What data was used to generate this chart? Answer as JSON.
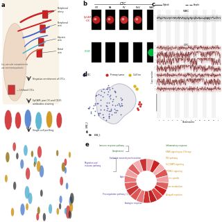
{
  "bg_color": "#ffffff",
  "panel_b": {
    "columns": [
      "HV",
      "PA",
      "PV",
      "PoV",
      "WBC"
    ],
    "row1_label": "EpCAM\n+CK",
    "row2_label": "CD45",
    "row1_has_dot": [
      true,
      true,
      true,
      true,
      false
    ],
    "row1_dot_color": [
      "#cc2222",
      "#cc2222",
      "#dd3333",
      "#dd3333",
      "#000000"
    ],
    "row2_has_dot": [
      false,
      false,
      false,
      false,
      true
    ],
    "row2_dot_color": [
      "#000000",
      "#000000",
      "#000000",
      "#000000",
      "#00cc44"
    ]
  },
  "panel_c": {
    "legend_diploid": "Diploid",
    "legend_amplic": "Amplic",
    "wbc_label": "WBC",
    "ctc_label": "CTC",
    "ylabel": "Copy number",
    "xlabel": "Chromosome",
    "chroms": [
      "1",
      "2",
      "3",
      "4",
      "5",
      "6",
      "7",
      "8",
      "9",
      "10",
      "11",
      "12",
      "13",
      "1-"
    ]
  },
  "panel_d": {
    "legend_labels": [
      "CTC",
      "Primary tumor",
      "Cell line"
    ],
    "legend_colors": [
      "#223388",
      "#cc2222",
      "#ddaa00"
    ],
    "tsne_xlabel": "tSNE_1",
    "tsne_ylabel": "tSNE_2"
  },
  "panel_e": {
    "left_group1_label": "Immune response pathway",
    "left_group1_items": [
      "Inflammatory response",
      "Complement"
    ],
    "left_group2_label": "Migration and\ninvasion pathway",
    "left_group2_items": [
      "Epithelial mesenchymal transition",
      "Hypoxia",
      "Apical junction"
    ],
    "left_bottom_items": [
      "Myogenesis",
      "Procoagulation pathway | Coagulation",
      "Andogen response"
    ],
    "right_group1_label": "Oncoge",
    "right_group1_items": [
      "KRAS signaling up",
      "P53 pathway"
    ],
    "right_bottom_items": [
      "IL2_STAT5 signaling",
      "MTORC1 signaling",
      "Mitotic spindle",
      "Heme metabolism",
      "Allograft rejection"
    ],
    "wedge_colors": [
      "#e87878",
      "#f0a0a0",
      "#cc2222",
      "#e06060",
      "#f4b0b0",
      "#dd4444",
      "#e06060",
      "#cc2222",
      "#bb2222",
      "#f0a0a0",
      "#e87878",
      "#dd5555",
      "#cc3333",
      "#f4b0b0",
      "#dd6666",
      "#bb2222",
      "#cc3333",
      "#dd4444",
      "#e06060"
    ],
    "left_label_color": "#553399",
    "right_label_color": "#cc8800",
    "green_label_color": "#226622"
  }
}
